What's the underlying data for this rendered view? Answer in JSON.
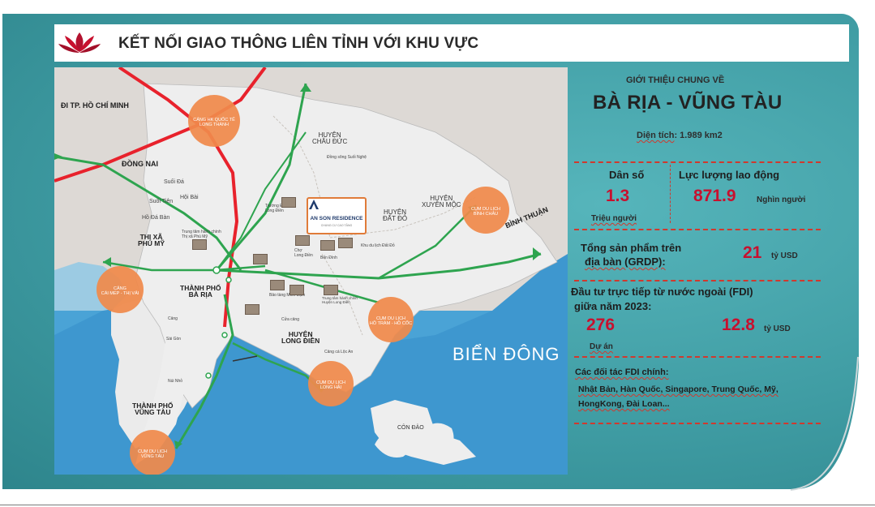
{
  "header": {
    "title": "KẾT NỐI GIAO THÔNG LIÊN TỈNH VỚI KHU VỰC",
    "logo": "lotus-logo"
  },
  "map": {
    "regions": {
      "hcm": "ĐI TP. HỒ CHÍ MINH",
      "dong_nai": "ĐỒNG NAI",
      "binh_thuan": "BÌNH THUẬN",
      "sea": "BIỂN ĐÔNG",
      "chau_duc": "HUYỆN\nCHÂU ĐỨC",
      "xuyen_moc": "HUYỆN\nXUYÊN MỘC",
      "dat_do": "HUYỆN\nĐẤT ĐỎ",
      "phu_my": "THỊ XÃ\nPHÚ MỸ",
      "ba_ria": "THÀNH PHỐ\nBÀ RỊA",
      "long_dien": "HUYỆN\nLONG ĐIỀN",
      "vung_tau": "THÀNH PHỐ\nVŨNG TÀU",
      "con_dao": "CÔN ĐẢO"
    },
    "circles": {
      "airport": "CẢNG HK QUỐC TẾ\nLONG THÀNH",
      "cai_mep": "CẢNG\nCÁI MÉP - THỊ VẢI",
      "binh_chau": "CỤM DU LỊCH\nBÌNH CHÂU",
      "ho_tram": "CỤM DU LỊCH\nHỒ TRÀM - HỒ CỐC",
      "long_hai": "CỤM DU LỊCH\nLONG HẢI",
      "vung_tau": "CỤM DU LỊCH\nVŨNG TÀU"
    },
    "places": [
      "Suối Đá",
      "Hội Bài",
      "Suối Tiên",
      "Hồ Đá Bàn",
      "Trung tâm hành chính\nThị xã Phú Mỹ",
      "Đồng sông Suối Nghệ",
      "Trường Đại học\nLong Điền",
      "Chợ\nLong Điền",
      "Bến Đình",
      "Cảng",
      "Sài Gòn",
      "Núi Nhỏ",
      "Trung tâm hành chính\nHuyện Long Điền",
      "Khu du lịch Đất Đỏ",
      "Bảo tàng Minh Đạm",
      "Cửa cảng",
      "Cảng cá Lộc An"
    ],
    "brand": {
      "name": "AN SON RESIDENCE",
      "sub": "CHUNG CƯ CAO TẦNG"
    }
  },
  "panel": {
    "intro": "GIỚI THIỆU CHUNG VỀ",
    "province": "BÀ RỊA - VŨNG TÀU",
    "area_label": "Diện tích",
    "area_value": ": 1.989 km2",
    "population_label": "Dân số",
    "population_value": "1.3",
    "population_unit": "Triệu người",
    "labor_label": "Lực lượng lao động",
    "labor_value": "871.9",
    "labor_unit": "Nghìn người",
    "grdp_label_1": "Tổng sản phẩm trên",
    "grdp_label_2": "địa bàn (GRDP):",
    "grdp_value": "21",
    "grdp_unit": "tỷ USD",
    "fdi_label_1": "Đầu tư trực tiếp từ nước ngoài (FDI)",
    "fdi_label_2": "giữa năm 2023:",
    "fdi_projects": "276",
    "fdi_projects_unit": "Dự án",
    "fdi_value": "12.8",
    "fdi_unit": "tỷ USD",
    "partners_label": "Các đối tác FDI chính:",
    "partners_1": "Nhật Bản, Hàn Quốc, Singapore, Trung Quốc, Mỹ,",
    "partners_2": "HongKong, Đài Loan..."
  },
  "colors": {
    "card": "#3f9ca3",
    "accent_red": "#c8102e",
    "dash_red": "#d0392e",
    "route_green": "#2ea44f",
    "road_red": "#e8222c",
    "circle_orange": "#f08a4b"
  }
}
